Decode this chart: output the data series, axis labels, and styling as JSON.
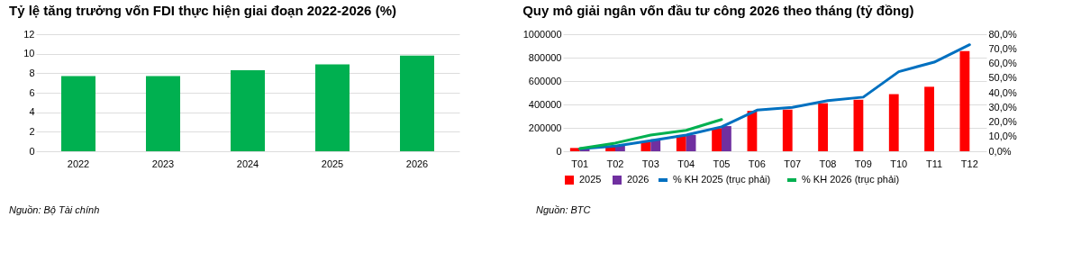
{
  "chart_data": [
    {
      "type": "bar",
      "title": "Tỷ lệ tăng trưởng vốn FDI thực hiện giai đoạn 2022-2026 (%)",
      "categories": [
        "2022",
        "2023",
        "2024",
        "2025",
        "2026"
      ],
      "values": [
        7.7,
        7.7,
        8.3,
        8.9,
        9.8
      ],
      "color": "#00b050",
      "ylim": [
        0,
        12
      ],
      "yticks": [
        0,
        2,
        4,
        6,
        8,
        10,
        12
      ],
      "grid": "y",
      "annotations": [
        "Nguồn:  Bộ Tài chính"
      ]
    },
    {
      "type": "bar",
      "title": "Quy mô giải ngân vốn đầu tư công 2026 theo tháng (tỷ đồng)",
      "categories": [
        "T01",
        "T02",
        "T03",
        "T04",
        "T05",
        "T06",
        "T07",
        "T08",
        "T09",
        "T10",
        "T11",
        "T12"
      ],
      "series": [
        {
          "name": "2025",
          "type": "bar",
          "color": "#ff0000",
          "values": [
            28000,
            44000,
            81000,
            139000,
            197000,
            345000,
            356000,
            410000,
            440000,
            488000,
            551000,
            856000
          ]
        },
        {
          "name": "2026",
          "type": "bar",
          "color": "#7030a0",
          "values": [
            16000,
            51000,
            102000,
            139000,
            215000,
            null,
            null,
            null,
            null,
            null,
            null,
            null
          ]
        },
        {
          "name": "% KH 2025 (trục phải)",
          "type": "line",
          "axis": "y2",
          "color": "#0070c0",
          "values": [
            1.7,
            3.5,
            7.2,
            11.1,
            16.7,
            28.1,
            30.0,
            34.6,
            37.0,
            54.4,
            60.9,
            72.8
          ]
        },
        {
          "name": "% KH 2026 (trục phải)",
          "type": "line",
          "axis": "y2",
          "color": "#00b050",
          "values": [
            1.9,
            5.6,
            11.1,
            14.3,
            21.7,
            null,
            null,
            null,
            null,
            null,
            null,
            null
          ]
        }
      ],
      "ylim": [
        0,
        1000000
      ],
      "yticks": [
        0,
        200000,
        400000,
        600000,
        800000,
        1000000
      ],
      "y2lim": [
        0,
        80
      ],
      "y2ticks": [
        {
          "value": 0,
          "label": "0,0%"
        },
        {
          "value": 10,
          "label": "10,0%"
        },
        {
          "value": 20,
          "label": "20,0%"
        },
        {
          "value": 30,
          "label": "30,0%"
        },
        {
          "value": 40,
          "label": "40,0%"
        },
        {
          "value": 50,
          "label": "50,0%"
        },
        {
          "value": 60,
          "label": "60,0%"
        },
        {
          "value": 70,
          "label": "70,0%"
        },
        {
          "value": 80,
          "label": "80,0%"
        }
      ],
      "grid": "y",
      "legend": "bottom",
      "annotations": [
        "Nguồn: BTC"
      ]
    }
  ]
}
